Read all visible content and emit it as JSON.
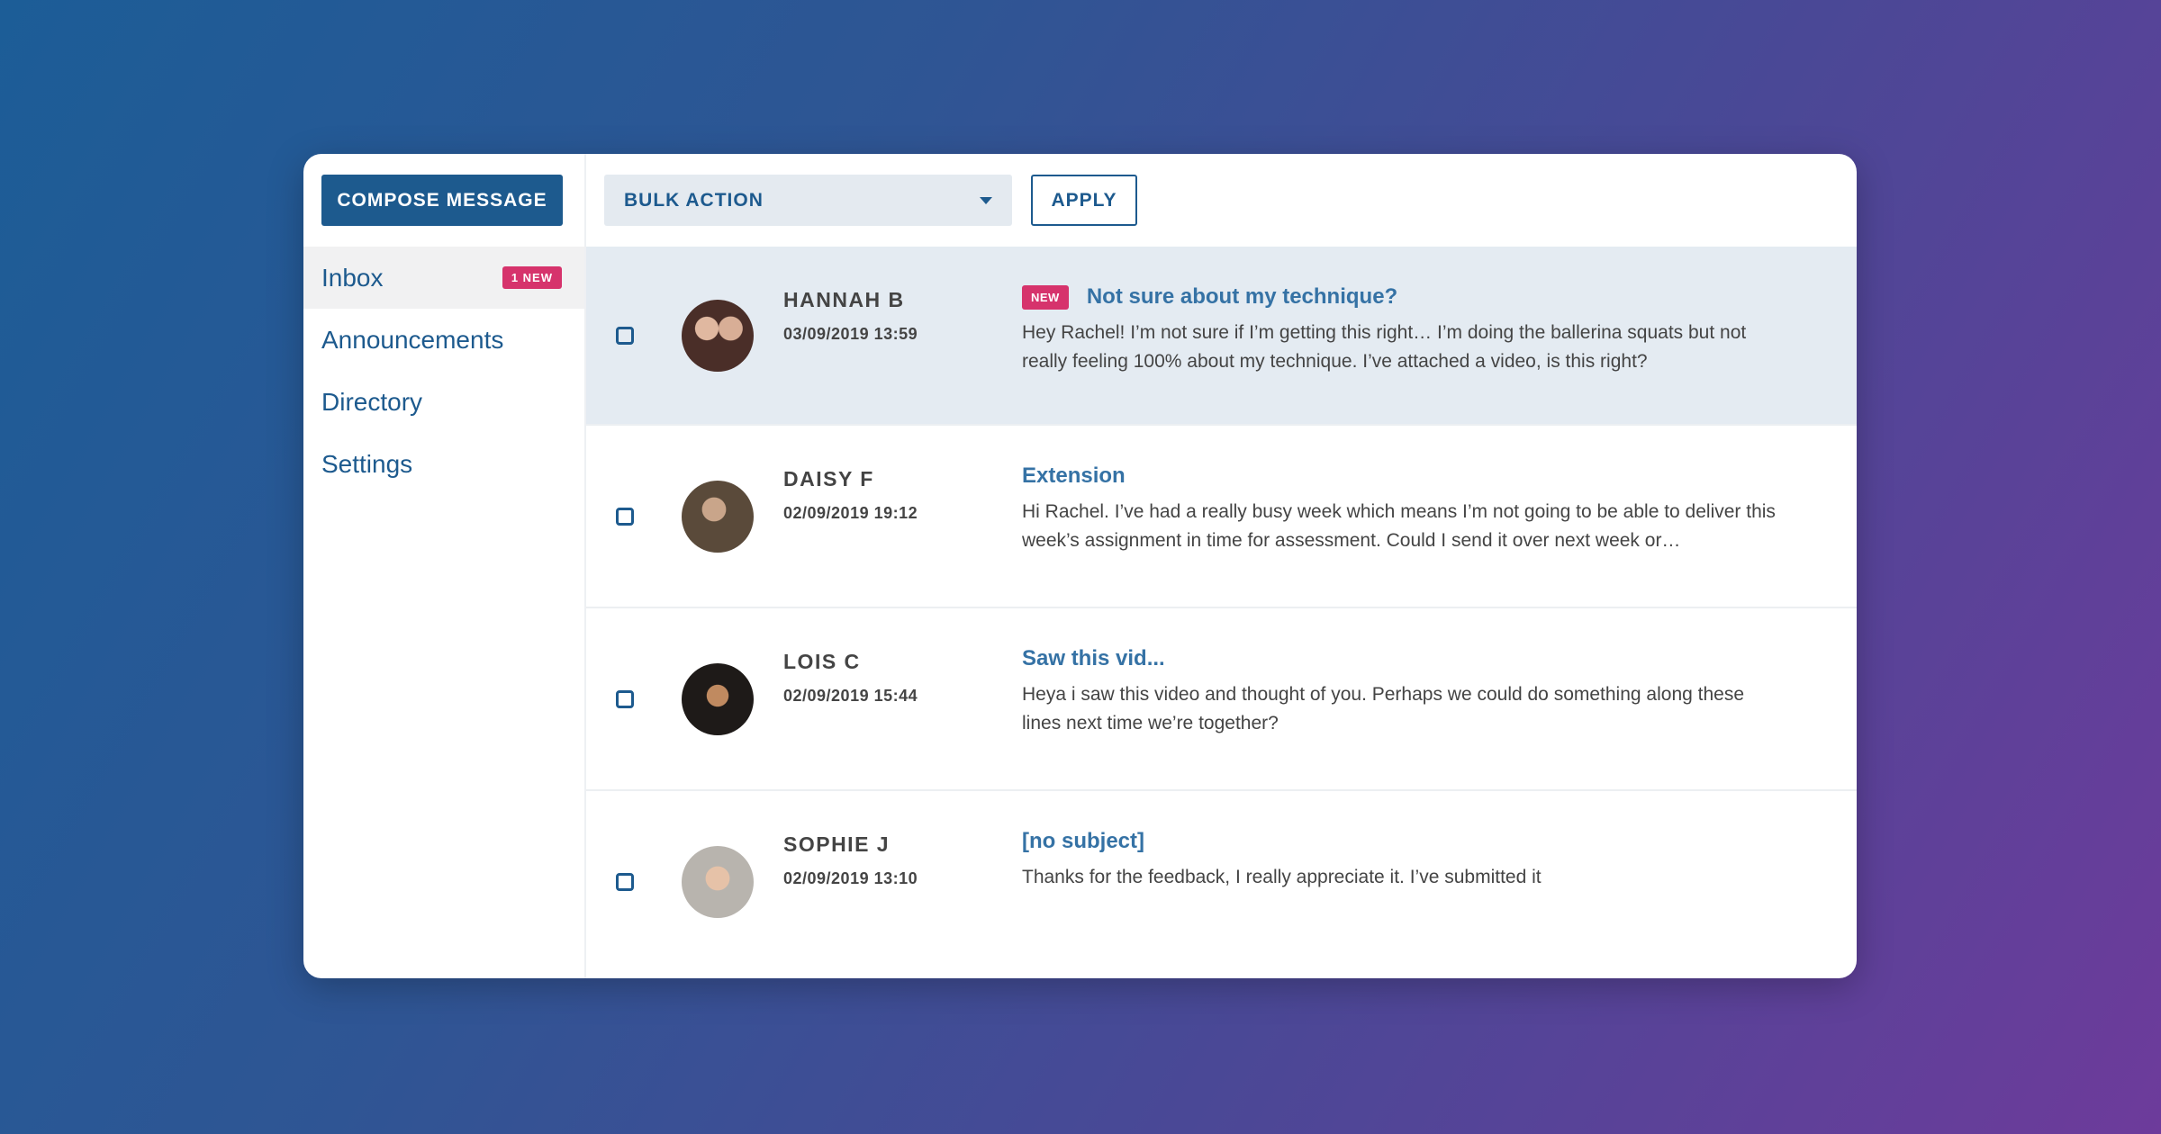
{
  "toolbar": {
    "compose_label": "COMPOSE MESSAGE",
    "bulk_action_label": "BULK ACTION",
    "apply_label": "APPLY"
  },
  "sidebar": {
    "items": [
      {
        "label": "Inbox",
        "badge": "1 NEW"
      },
      {
        "label": "Announcements"
      },
      {
        "label": "Directory"
      },
      {
        "label": "Settings"
      }
    ]
  },
  "messages": [
    {
      "name": "HANNAH B",
      "date": "03/09/2019 13:59",
      "new_tag": "NEW",
      "subject": "Not sure about my technique?",
      "body": "Hey Rachel! I’m not sure if I’m getting this right… I’m doing the ballerina squats but not really feeling 100% about my technique. I’ve attached a video, is this right?"
    },
    {
      "name": "DAISY F",
      "date": "02/09/2019 19:12",
      "subject": "Extension",
      "body": "Hi Rachel. I’ve had a really busy week which means I’m not going to be able to deliver this week’s assignment in time for assessment. Could I send it over next week or…"
    },
    {
      "name": "LOIS C",
      "date": "02/09/2019 15:44",
      "subject": "Saw this vid...",
      "body": "Heya i saw this video and thought of you. Perhaps we could do something along these lines next time we’re together?"
    },
    {
      "name": "SOPHIE J",
      "date": "02/09/2019 13:10",
      "subject": "[no subject]",
      "body": "Thanks for the feedback, I really appreciate it. I’ve submitted it"
    }
  ],
  "colors": {
    "primary": "#1d5a8e",
    "accent": "#d6336c",
    "subject": "#3572a5",
    "unread_bg": "#e4ebf2"
  }
}
